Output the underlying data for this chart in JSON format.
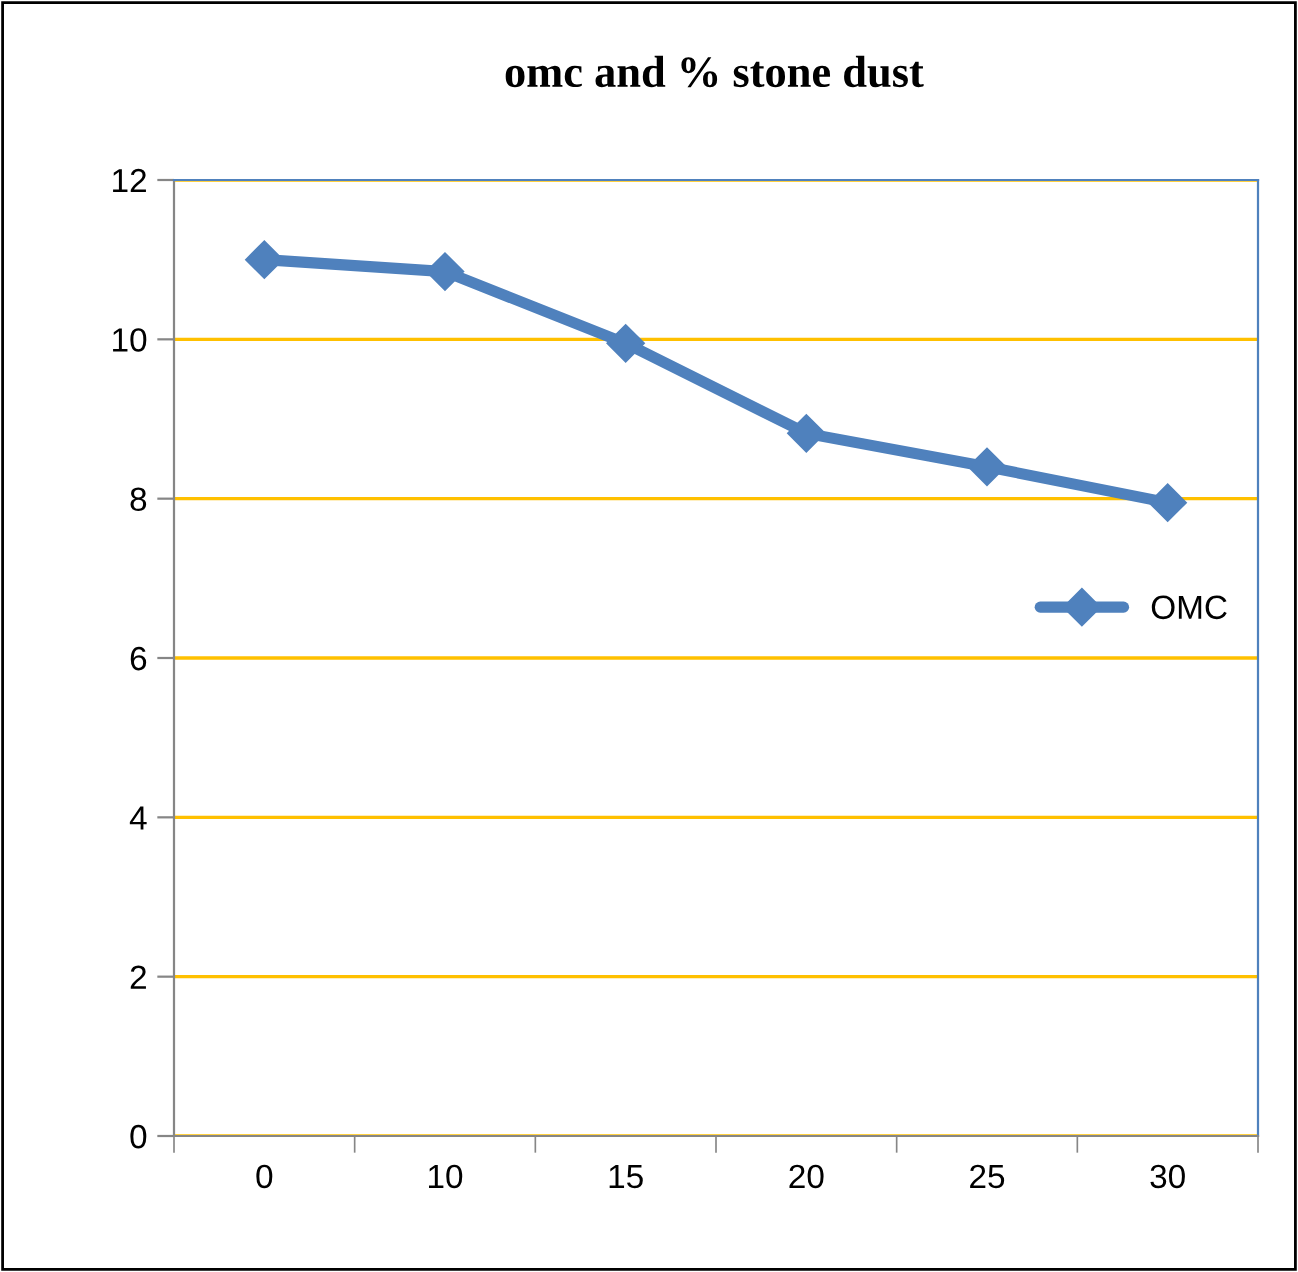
{
  "chart_data": {
    "type": "line",
    "title": "omc and % stone dust",
    "categories": [
      "0",
      "10",
      "15",
      "20",
      "25",
      "30"
    ],
    "series": [
      {
        "name": "OMC",
        "color": "#4f81bd",
        "values": [
          11.0,
          10.85,
          9.95,
          8.82,
          8.4,
          7.95
        ]
      }
    ],
    "ylim": [
      0,
      12
    ],
    "yticks": [
      0,
      2,
      4,
      6,
      8,
      10,
      12
    ],
    "grid": "y",
    "legend": "right",
    "marker": "diamond",
    "line_style": "solid"
  }
}
